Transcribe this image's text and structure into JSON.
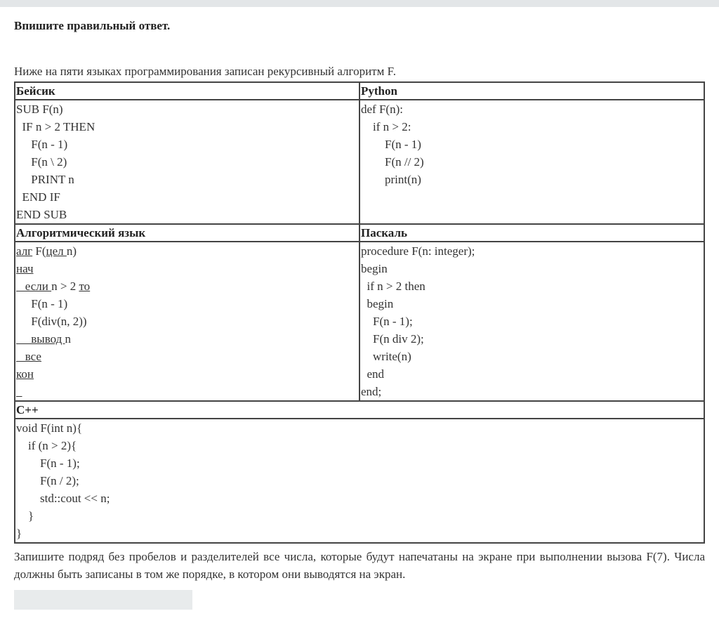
{
  "instruction": "Впишите правильный ответ.",
  "intro": "Ниже на пяти языках программирования записан рекурсивный алгоритм  F.",
  "basic": {
    "title": "Бейсик",
    "lines": [
      "SUB F(n)",
      "  IF n > 2 THEN",
      "     F(n - 1)",
      "     F(n \\ 2)",
      "     PRINT n",
      "  END IF",
      "END SUB"
    ]
  },
  "python": {
    "title": "Python",
    "lines": [
      "def F(n):",
      "    if n > 2:",
      "        F(n - 1)",
      "        F(n // 2)",
      "        print(n)"
    ]
  },
  "alg": {
    "title": "Алгоритмический язык",
    "lines": [
      [
        {
          "t": "алг",
          "u": true
        },
        {
          "t": " F("
        },
        {
          "t": "цел ",
          "u": true
        },
        {
          "t": "n)"
        }
      ],
      [
        {
          "t": "нач",
          "u": true
        }
      ],
      [
        {
          "t": "   если ",
          "u": true
        },
        {
          "t": "n > 2 "
        },
        {
          "t": "то",
          "u": true
        }
      ],
      [
        {
          "t": "     F(n - 1)"
        }
      ],
      [
        {
          "t": "     F(div(n, 2))"
        }
      ],
      [
        {
          "t": "     вывод ",
          "u": true
        },
        {
          "t": "n"
        }
      ],
      [
        {
          "t": "   все",
          "u": true
        }
      ],
      [
        {
          "t": "кон",
          "u": true
        }
      ],
      [
        {
          "t": "  ",
          "u": true
        }
      ]
    ]
  },
  "pascal": {
    "title": "Паскаль",
    "lines": [
      "procedure F(n: integer);",
      "begin",
      "  if n > 2 then",
      "  begin",
      "    F(n - 1);",
      "    F(n div 2);",
      "    write(n)",
      "  end",
      "end;"
    ]
  },
  "cpp": {
    "title": "C++",
    "lines": [
      "void F(int n){",
      "    if (n > 2){",
      "        F(n - 1);",
      "        F(n / 2);",
      "        std::cout << n;",
      "    }",
      "}"
    ]
  },
  "question": "Запишите подряд без пробелов и разделителей все числа, которые будут напечатаны на экране при выполнении вызова F(7). Числа должны быть записаны в том же порядке, в котором они выводятся на экран.",
  "answer": {
    "value": "",
    "placeholder": ""
  }
}
